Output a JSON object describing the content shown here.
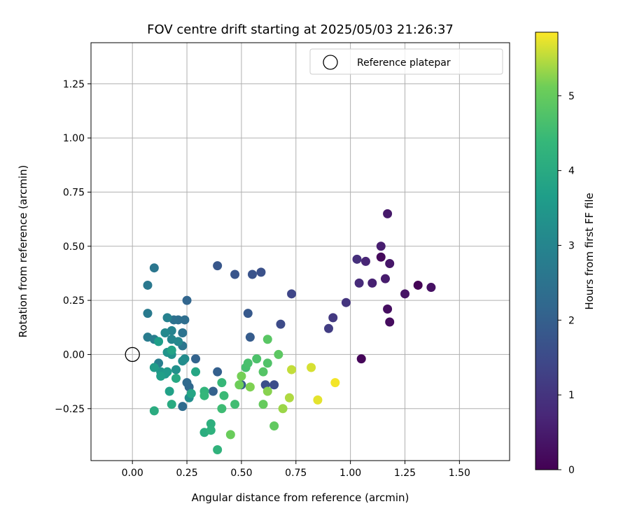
{
  "chart_data": {
    "type": "scatter",
    "title": "FOV centre drift starting at 2025/05/03 21:26:37",
    "xlabel": "Angular distance from reference (arcmin)",
    "ylabel": "Rotation from reference (arcmin)",
    "xlim": [
      -0.19,
      1.73
    ],
    "ylim": [
      -0.49,
      1.44
    ],
    "xticks": [
      0.0,
      0.25,
      0.5,
      0.75,
      1.0,
      1.25,
      1.5
    ],
    "xtick_labels": [
      "0.00",
      "0.25",
      "0.50",
      "0.75",
      "1.00",
      "1.25",
      "1.50"
    ],
    "yticks": [
      -0.25,
      0.0,
      0.25,
      0.5,
      0.75,
      1.0,
      1.25
    ],
    "ytick_labels": [
      "−0.25",
      "0.00",
      "0.25",
      "0.50",
      "0.75",
      "1.00",
      "1.25"
    ],
    "grid": true,
    "legend": {
      "position": "top-right",
      "entries": [
        "Reference platepar"
      ]
    },
    "reference_point": {
      "x": 0.0,
      "y": 0.0
    },
    "colorbar": {
      "label": "Hours from first FF file",
      "colormap": "viridis",
      "range": [
        0,
        5.85
      ],
      "ticks": [
        0,
        1,
        2,
        3,
        4,
        5
      ],
      "tick_labels": [
        "0",
        "1",
        "2",
        "3",
        "4",
        "5"
      ]
    },
    "points": [
      {
        "x": 1.31,
        "y": 0.32,
        "h": 0.05
      },
      {
        "x": 1.05,
        "y": -0.02,
        "h": 0.1
      },
      {
        "x": 1.14,
        "y": 0.45,
        "h": 0.15
      },
      {
        "x": 1.18,
        "y": 0.15,
        "h": 0.2
      },
      {
        "x": 1.17,
        "y": 0.21,
        "h": 0.25
      },
      {
        "x": 1.37,
        "y": 0.31,
        "h": 0.3
      },
      {
        "x": 1.25,
        "y": 0.28,
        "h": 0.35
      },
      {
        "x": 1.18,
        "y": 0.42,
        "h": 0.4
      },
      {
        "x": 1.17,
        "y": 0.65,
        "h": 0.45
      },
      {
        "x": 1.16,
        "y": 0.35,
        "h": 0.5
      },
      {
        "x": 1.14,
        "y": 0.5,
        "h": 0.55
      },
      {
        "x": 1.1,
        "y": 0.33,
        "h": 0.6
      },
      {
        "x": 1.07,
        "y": 0.43,
        "h": 0.7
      },
      {
        "x": 1.04,
        "y": 0.33,
        "h": 0.8
      },
      {
        "x": 1.03,
        "y": 0.44,
        "h": 0.9
      },
      {
        "x": 0.98,
        "y": 0.24,
        "h": 1.0
      },
      {
        "x": 0.92,
        "y": 0.17,
        "h": 1.1
      },
      {
        "x": 0.9,
        "y": 0.12,
        "h": 1.2
      },
      {
        "x": 0.73,
        "y": 0.28,
        "h": 1.4
      },
      {
        "x": 0.68,
        "y": 0.14,
        "h": 1.5
      },
      {
        "x": 0.65,
        "y": -0.14,
        "h": 1.55
      },
      {
        "x": 0.61,
        "y": -0.14,
        "h": 1.6
      },
      {
        "x": 0.59,
        "y": 0.38,
        "h": 1.65
      },
      {
        "x": 0.55,
        "y": 0.37,
        "h": 1.7
      },
      {
        "x": 0.47,
        "y": 0.37,
        "h": 1.75
      },
      {
        "x": 0.39,
        "y": 0.41,
        "h": 1.8
      },
      {
        "x": 0.53,
        "y": 0.19,
        "h": 1.85
      },
      {
        "x": 0.54,
        "y": 0.08,
        "h": 1.9
      },
      {
        "x": 0.5,
        "y": -0.14,
        "h": 1.95
      },
      {
        "x": 0.39,
        "y": -0.08,
        "h": 2.0
      },
      {
        "x": 0.37,
        "y": -0.17,
        "h": 2.05
      },
      {
        "x": 0.29,
        "y": -0.02,
        "h": 2.1
      },
      {
        "x": 0.25,
        "y": 0.25,
        "h": 2.15
      },
      {
        "x": 0.26,
        "y": -0.15,
        "h": 2.2
      },
      {
        "x": 0.25,
        "y": -0.13,
        "h": 2.25
      },
      {
        "x": 0.23,
        "y": -0.24,
        "h": 2.3
      },
      {
        "x": 0.24,
        "y": 0.16,
        "h": 2.35
      },
      {
        "x": 0.21,
        "y": 0.16,
        "h": 2.4
      },
      {
        "x": 0.19,
        "y": 0.16,
        "h": 2.45
      },
      {
        "x": 0.23,
        "y": 0.1,
        "h": 2.5
      },
      {
        "x": 0.23,
        "y": 0.04,
        "h": 2.55
      },
      {
        "x": 0.1,
        "y": 0.4,
        "h": 2.6
      },
      {
        "x": 0.07,
        "y": 0.32,
        "h": 2.65
      },
      {
        "x": 0.07,
        "y": 0.19,
        "h": 2.7
      },
      {
        "x": 0.07,
        "y": 0.08,
        "h": 2.75
      },
      {
        "x": 0.1,
        "y": 0.07,
        "h": 2.8
      },
      {
        "x": 0.12,
        "y": -0.04,
        "h": 2.85
      },
      {
        "x": 0.16,
        "y": 0.17,
        "h": 2.9
      },
      {
        "x": 0.18,
        "y": 0.11,
        "h": 2.95
      },
      {
        "x": 0.18,
        "y": 0.07,
        "h": 3.0
      },
      {
        "x": 0.21,
        "y": 0.06,
        "h": 3.05
      },
      {
        "x": 0.15,
        "y": 0.1,
        "h": 3.1
      },
      {
        "x": 0.24,
        "y": -0.02,
        "h": 3.15
      },
      {
        "x": 0.23,
        "y": -0.03,
        "h": 3.2
      },
      {
        "x": 0.26,
        "y": -0.2,
        "h": 3.25
      },
      {
        "x": 0.2,
        "y": -0.07,
        "h": 3.3
      },
      {
        "x": 0.18,
        "y": 0.0,
        "h": 3.35
      },
      {
        "x": 0.16,
        "y": 0.01,
        "h": 3.4
      },
      {
        "x": 0.13,
        "y": -0.08,
        "h": 3.45
      },
      {
        "x": 0.15,
        "y": -0.09,
        "h": 3.5
      },
      {
        "x": 0.16,
        "y": -0.08,
        "h": 3.55
      },
      {
        "x": 0.1,
        "y": -0.06,
        "h": 3.6
      },
      {
        "x": 0.12,
        "y": 0.06,
        "h": 3.65
      },
      {
        "x": 0.13,
        "y": -0.1,
        "h": 3.7
      },
      {
        "x": 0.17,
        "y": -0.17,
        "h": 3.75
      },
      {
        "x": 0.18,
        "y": 0.02,
        "h": 3.8
      },
      {
        "x": 0.27,
        "y": -0.18,
        "h": 3.85
      },
      {
        "x": 0.29,
        "y": -0.08,
        "h": 3.9
      },
      {
        "x": 0.2,
        "y": -0.11,
        "h": 3.95
      },
      {
        "x": 0.18,
        "y": -0.23,
        "h": 4.0
      },
      {
        "x": 0.1,
        "y": -0.26,
        "h": 4.05
      },
      {
        "x": 0.33,
        "y": -0.36,
        "h": 4.1
      },
      {
        "x": 0.36,
        "y": -0.32,
        "h": 4.15
      },
      {
        "x": 0.36,
        "y": -0.35,
        "h": 4.2
      },
      {
        "x": 0.39,
        "y": -0.44,
        "h": 4.25
      },
      {
        "x": 0.33,
        "y": -0.17,
        "h": 4.3
      },
      {
        "x": 0.33,
        "y": -0.19,
        "h": 4.35
      },
      {
        "x": 0.41,
        "y": -0.13,
        "h": 4.4
      },
      {
        "x": 0.42,
        "y": -0.19,
        "h": 4.45
      },
      {
        "x": 0.41,
        "y": -0.25,
        "h": 4.5
      },
      {
        "x": 0.47,
        "y": -0.23,
        "h": 4.55
      },
      {
        "x": 0.52,
        "y": -0.06,
        "h": 4.6
      },
      {
        "x": 0.53,
        "y": -0.04,
        "h": 4.65
      },
      {
        "x": 0.57,
        "y": -0.02,
        "h": 4.7
      },
      {
        "x": 0.62,
        "y": -0.04,
        "h": 4.75
      },
      {
        "x": 0.6,
        "y": -0.08,
        "h": 4.8
      },
      {
        "x": 0.62,
        "y": 0.07,
        "h": 4.85
      },
      {
        "x": 0.67,
        "y": 0.0,
        "h": 4.9
      },
      {
        "x": 0.65,
        "y": -0.33,
        "h": 4.95
      },
      {
        "x": 0.6,
        "y": -0.23,
        "h": 5.0
      },
      {
        "x": 0.45,
        "y": -0.37,
        "h": 5.05
      },
      {
        "x": 0.49,
        "y": -0.14,
        "h": 5.1
      },
      {
        "x": 0.5,
        "y": -0.1,
        "h": 5.15
      },
      {
        "x": 0.54,
        "y": -0.15,
        "h": 5.2
      },
      {
        "x": 0.62,
        "y": -0.17,
        "h": 5.25
      },
      {
        "x": 0.69,
        "y": -0.25,
        "h": 5.35
      },
      {
        "x": 0.72,
        "y": -0.2,
        "h": 5.45
      },
      {
        "x": 0.73,
        "y": -0.07,
        "h": 5.55
      },
      {
        "x": 0.82,
        "y": -0.06,
        "h": 5.65
      },
      {
        "x": 0.85,
        "y": -0.21,
        "h": 5.72
      },
      {
        "x": 0.93,
        "y": -0.13,
        "h": 5.8
      }
    ]
  }
}
